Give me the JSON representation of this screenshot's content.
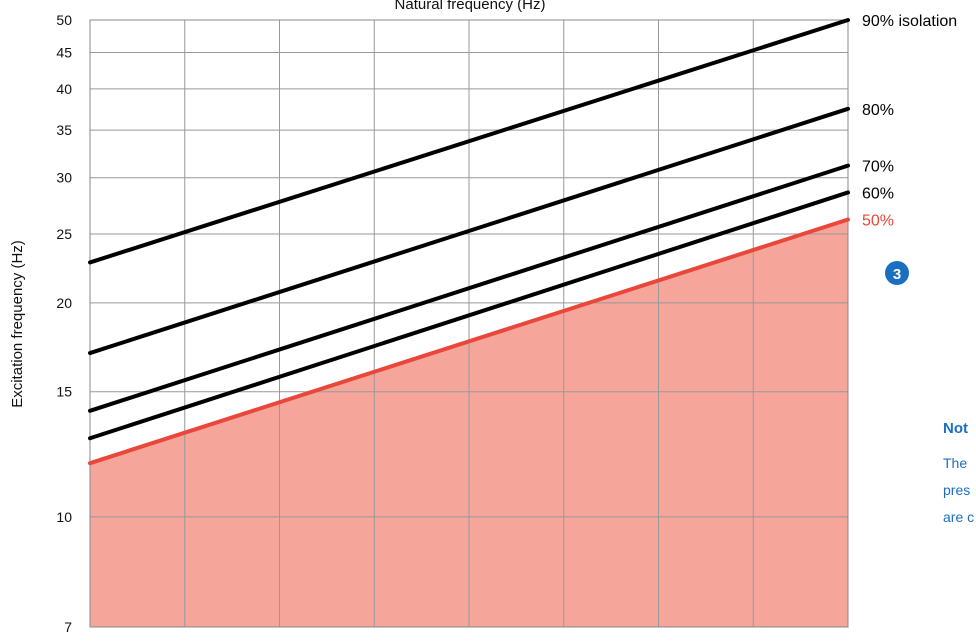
{
  "chart_data": {
    "type": "line",
    "title": "Natural frequency (Hz)",
    "ylabel": "Excitation frequency (Hz)",
    "yscale": "log",
    "ylim": [
      7,
      50
    ],
    "y_ticks": [
      7,
      10,
      15,
      20,
      25,
      30,
      35,
      40,
      45,
      50
    ],
    "x_gridlines": 8,
    "grid": true,
    "series": [
      {
        "name": "90% isolation",
        "color": "#000000",
        "x": [
          0,
          1
        ],
        "values": [
          22.8,
          50
        ]
      },
      {
        "name": "80%",
        "color": "#000000",
        "x": [
          0,
          1
        ],
        "values": [
          17.0,
          37.5
        ]
      },
      {
        "name": "70%",
        "color": "#000000",
        "x": [
          0,
          1
        ],
        "values": [
          14.1,
          31.2
        ]
      },
      {
        "name": "60%",
        "color": "#000000",
        "x": [
          0,
          1
        ],
        "values": [
          12.9,
          28.6
        ]
      },
      {
        "name": "50%",
        "color": "#e8473a",
        "x": [
          0,
          1
        ],
        "values": [
          11.9,
          26.2
        ],
        "fill_below": true,
        "fill_color": "#f5a59a"
      }
    ],
    "annotations": [
      {
        "text": "3",
        "style": "blue circle badge"
      }
    ]
  },
  "note": {
    "title": "Not",
    "lines": [
      "The",
      "pres",
      "are c"
    ],
    "color": "#1a6fc0"
  }
}
